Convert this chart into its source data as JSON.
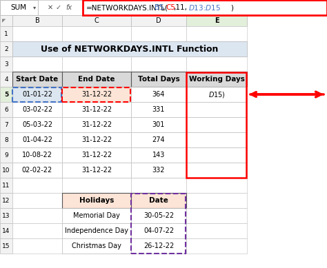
{
  "formula_bar_name": "SUM",
  "formula_bar_formula": "=NETWORKDAYS.INTL(B5,C5,11,$D$13:$D$15)",
  "title": "Use of NETWORKDAYS.INTL Function",
  "title_bg": "#dce6f1",
  "table1_headers": [
    "Start Date",
    "End Date",
    "Total Days",
    "Working Days"
  ],
  "table1_header_bg": "#d9d9d9",
  "table1_rows": [
    [
      "01-01-22",
      "31-12-22",
      "364",
      "$D$15)"
    ],
    [
      "03-02-22",
      "31-12-22",
      "331",
      ""
    ],
    [
      "05-03-22",
      "31-12-22",
      "301",
      ""
    ],
    [
      "01-04-22",
      "31-12-22",
      "274",
      ""
    ],
    [
      "10-08-22",
      "31-12-22",
      "143",
      ""
    ],
    [
      "02-02-22",
      "31-12-22",
      "332",
      ""
    ]
  ],
  "table2_headers": [
    "Holidays",
    "Date"
  ],
  "table2_header_bg": "#fce4d6",
  "table2_rows": [
    [
      "Memorial Day",
      "30-05-22"
    ],
    [
      "Independence Day",
      "04-07-22"
    ],
    [
      "Christmas Day",
      "26-12-22"
    ]
  ],
  "row5_startdate_bg": "#dce6f1",
  "row5_enddate_bg": "#fce4d6",
  "bg_color": "#ffffff",
  "col_E_selected_bg": "#e2efda",
  "col_headers_bg": "#f2f2f2",
  "row_num_bg": "#f2f2f2",
  "grid_color": "#bfbfbf",
  "formula_border_color": "#ff0000",
  "working_days_border_color": "#ff0000",
  "b5_border_color": "#4472c4",
  "c5_border_color": "#ff0000",
  "date_col_border_color": "#7030a0",
  "arrow_color": "#ff0000",
  "formula_text_color": "#000000",
  "b5_text_color": "#4472c4",
  "c5_text_color": "#ff0000",
  "d13d15_text_color": "#4472c4"
}
